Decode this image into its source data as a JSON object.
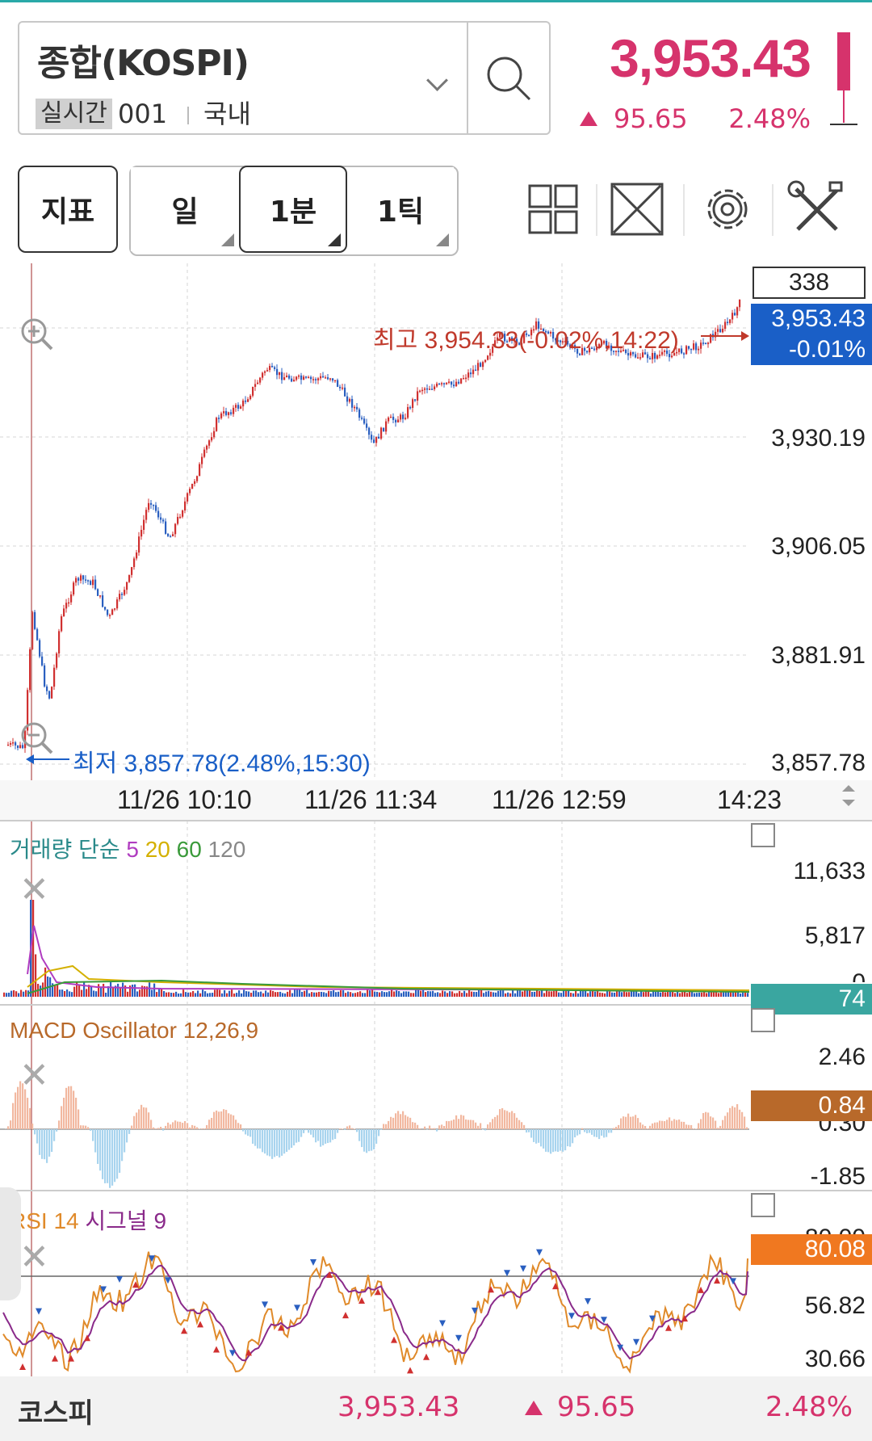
{
  "header": {
    "symbol_name": "종합(KOSPI)",
    "realtime_badge": "실시간",
    "code": "001",
    "market": "국내",
    "price": "3,953.43",
    "change": "95.65",
    "change_pct": "2.48%",
    "up_color": "#d6336c"
  },
  "toolbar": {
    "indicator_label": "지표",
    "day_label": "일",
    "minute_label": "1분",
    "tick_label": "1틱",
    "icons": [
      "layout-grid-icon",
      "expand-icon",
      "settings-gear-icon",
      "tools-icon"
    ]
  },
  "price_chart": {
    "count_box": "338",
    "y_axis_labels": [
      "3,930.19",
      "3,906.05",
      "3,881.91",
      "3,857.78"
    ],
    "x_axis_labels": [
      "11/26 10:10",
      "11/26 11:34",
      "11/26 12:59",
      "14:23"
    ],
    "high_annotation": "최고 3,954.33(-0.02%,14:22)",
    "low_annotation": "최저 3,857.78(2.48%,15:30)",
    "current_tag_price": "3,953.43",
    "current_tag_pct": "-0.01%",
    "tag_color": "#1a5fc7"
  },
  "volume_pane": {
    "legend_name": "거래량 단순",
    "ma_periods": [
      "5",
      "20",
      "60",
      "120"
    ],
    "y_axis_labels": [
      "11,633",
      "5,817",
      "0"
    ],
    "current_tag": "74",
    "tag_color": "#3aa6a0"
  },
  "macd_pane": {
    "legend": "MACD Oscillator 12,26,9",
    "y_axis_labels": [
      "2.46",
      "0.30",
      "-1.85"
    ],
    "current_tag": "0.84",
    "tag_color": "#b8692a"
  },
  "rsi_pane": {
    "legend_rsi": "RSI 14",
    "legend_signal": "시그널 9",
    "y_axis_labels": [
      "80.00",
      "56.82",
      "30.66"
    ],
    "current_tag": "80.08",
    "tag_color": "#f07820"
  },
  "bottom_bar": {
    "name": "코스피",
    "price": "3,953.43",
    "change": "95.65",
    "change_pct": "2.48%"
  }
}
